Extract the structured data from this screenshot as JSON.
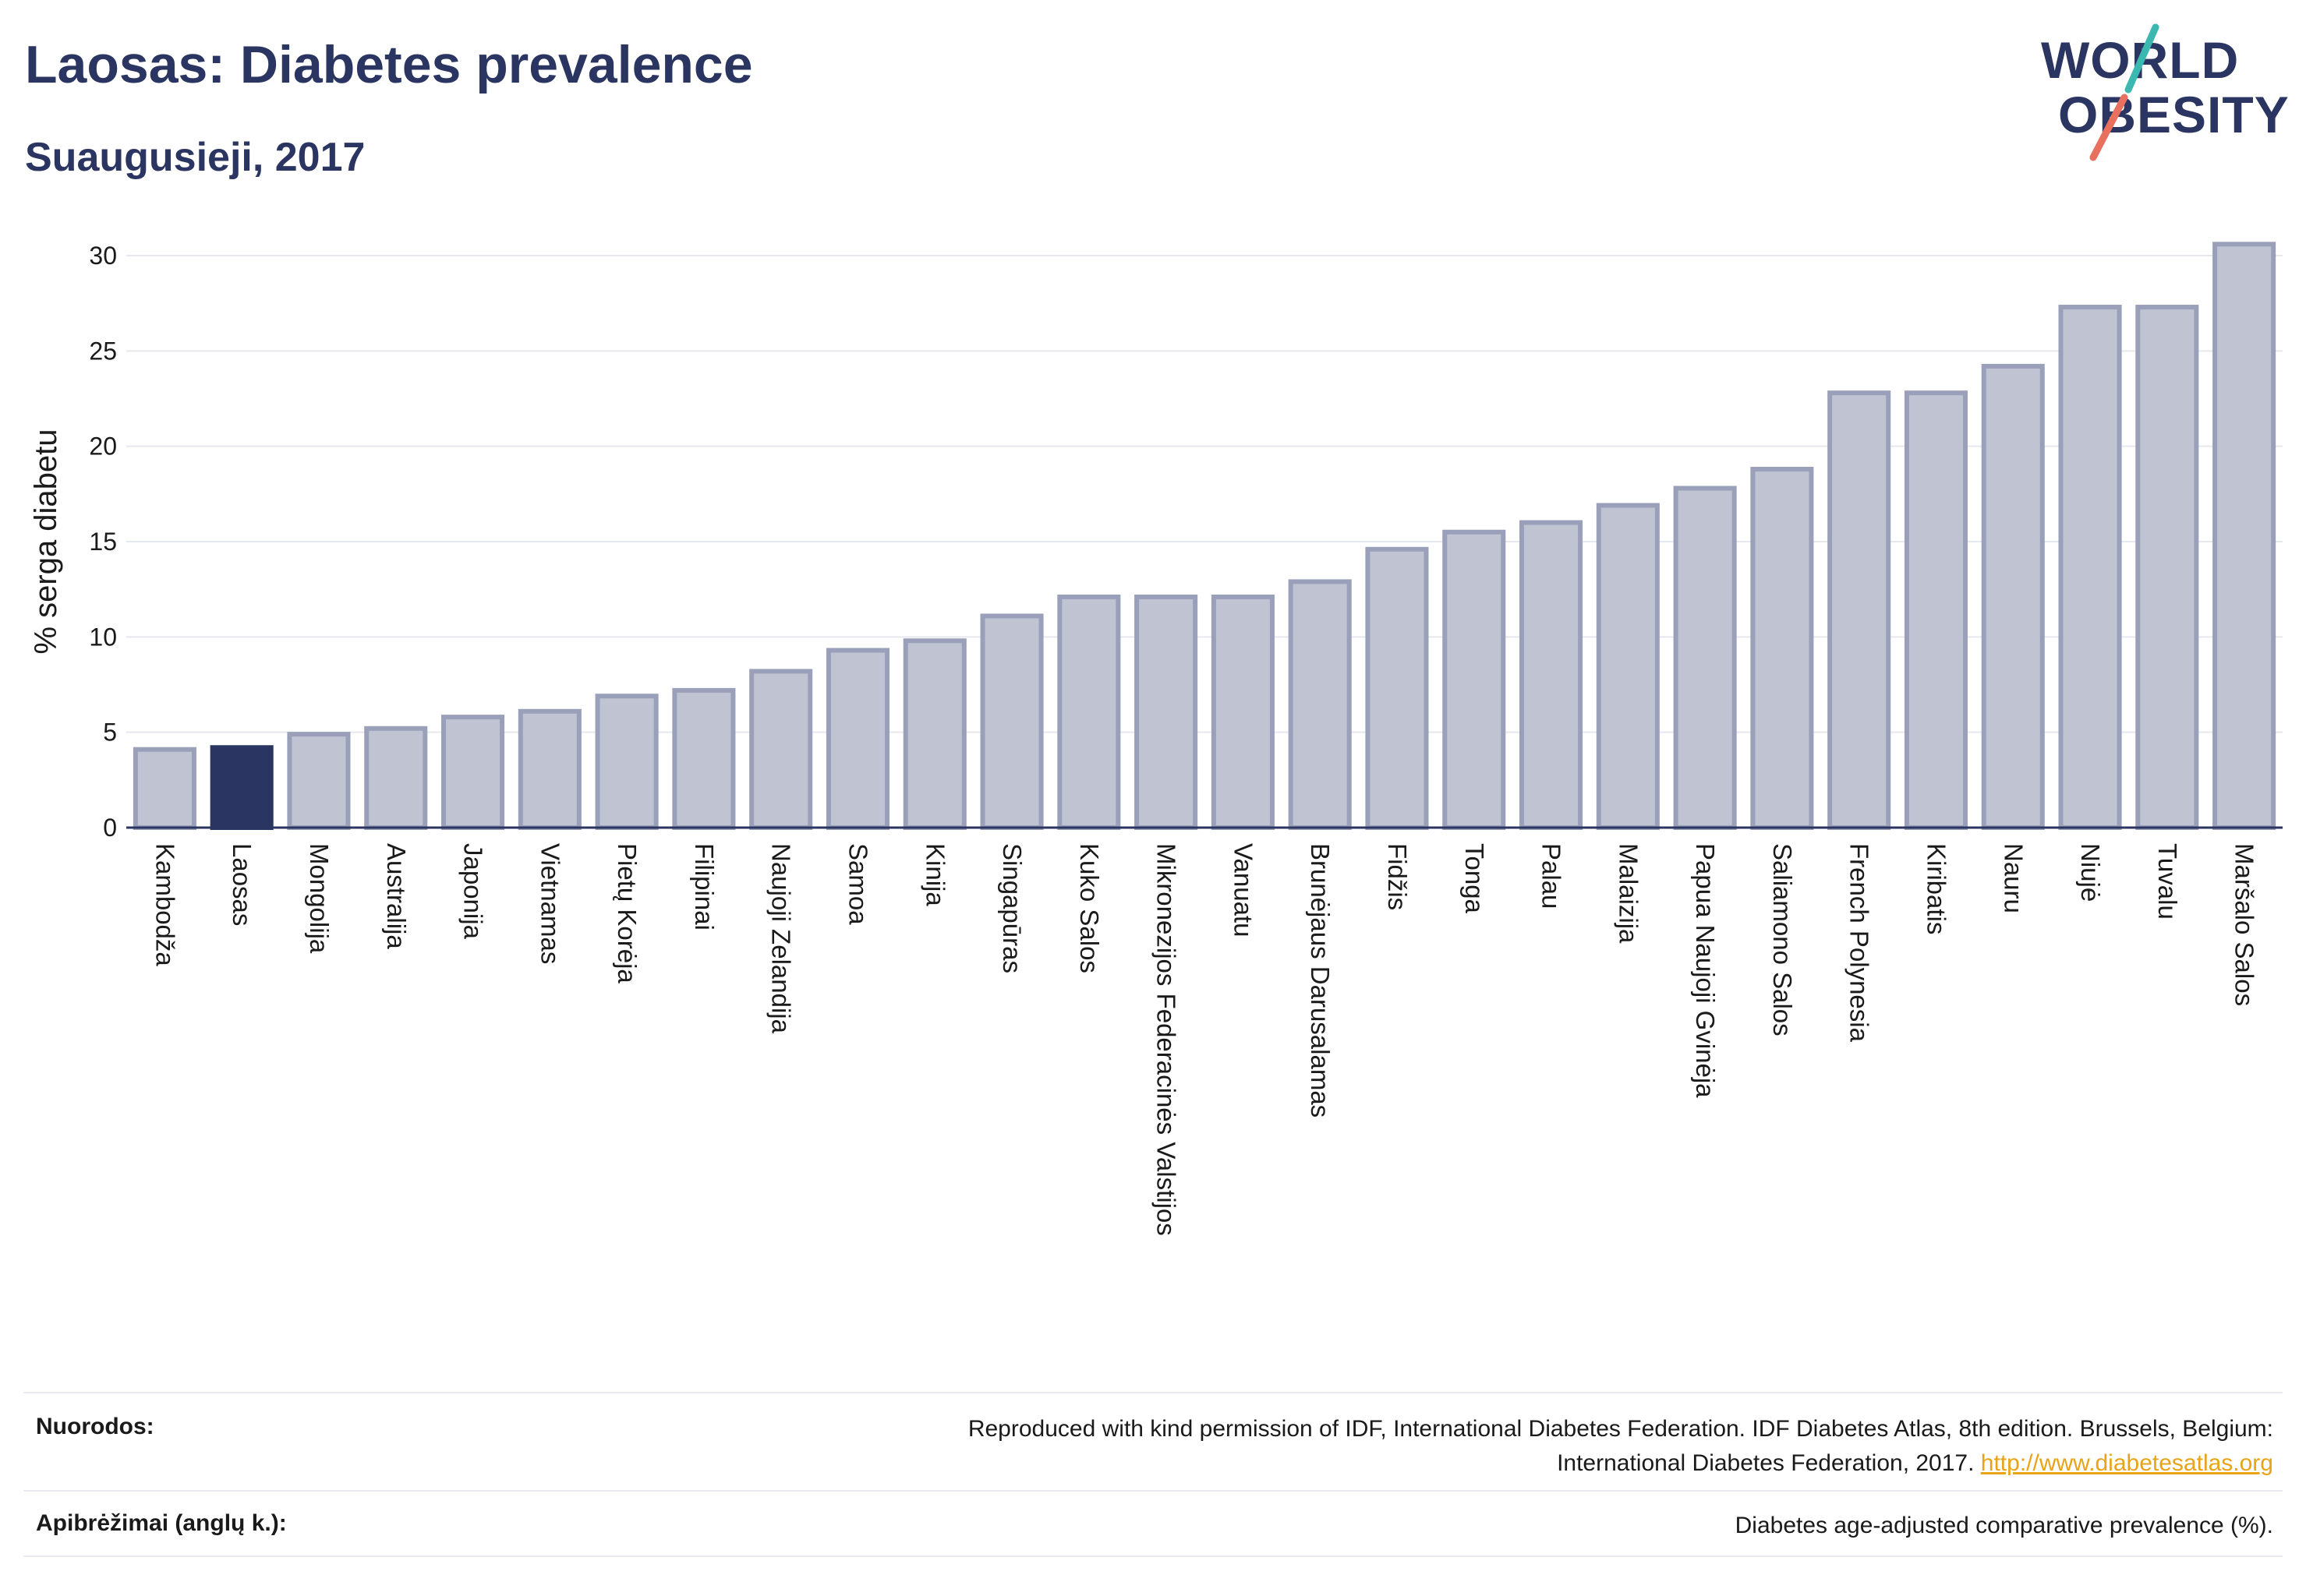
{
  "header": {
    "title": "Laosas: Diabetes prevalence",
    "subtitle": "Suaugusieji, 2017"
  },
  "logo": {
    "line1": "WORLD",
    "line2": "OBESITY",
    "colors": {
      "text": "#2b3561",
      "slash_teal": "#3bb8b0",
      "slash_coral": "#e9705e"
    }
  },
  "chart_data": {
    "type": "bar",
    "title": "Laosas: Diabetes prevalence",
    "subtitle": "Suaugusieji, 2017",
    "ylabel": "% serga diabetu",
    "xlabel": "",
    "ylim": [
      0,
      31
    ],
    "yticks": [
      0,
      5,
      10,
      15,
      20,
      25,
      30
    ],
    "grid": true,
    "highlight": "Laosas",
    "colors": {
      "default": "#bfc3d2",
      "default_border": "#9aa0b9",
      "highlight": "#2b3561"
    },
    "categories": [
      "Kambodža",
      "Laosas",
      "Mongolija",
      "Australija",
      "Japonija",
      "Vietnamas",
      "Pietų Korėja",
      "Filipinai",
      "Naujoji Zelandija",
      "Samoa",
      "Kinija",
      "Singapūras",
      "Kuko Salos",
      "Mikronezijos Federacinės Valstijos",
      "Vanuatu",
      "Brunėjaus Darusalamas",
      "Fidžis",
      "Tonga",
      "Palau",
      "Malaizija",
      "Papua Naujoji Gvinėja",
      "Saliamono Salos",
      "French Polynesia",
      "Kiribatis",
      "Nauru",
      "Niujė",
      "Tuvalu",
      "Maršalo Salos"
    ],
    "values": [
      4.1,
      4.2,
      4.9,
      5.2,
      5.8,
      6.1,
      6.9,
      7.2,
      8.2,
      9.3,
      9.8,
      11.1,
      12.1,
      12.1,
      12.1,
      12.9,
      14.6,
      15.5,
      16.0,
      16.9,
      17.8,
      18.8,
      22.8,
      22.8,
      24.2,
      27.3,
      27.3,
      30.6
    ]
  },
  "footer": {
    "references_label": "Nuorodos:",
    "references_line1": "Reproduced with kind permission of IDF, International Diabetes Federation. IDF Diabetes Atlas, 8th edition. Brussels, Belgium:",
    "references_line2": "International Diabetes Federation, 2017.",
    "references_link": "http://www.diabetesatlas.org",
    "definitions_label": "Apibrėžimai (anglų k.):",
    "definitions_text": "Diabetes age-adjusted comparative prevalence (%)."
  }
}
